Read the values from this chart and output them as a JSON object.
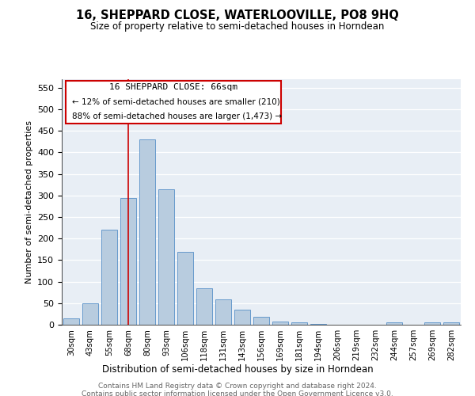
{
  "title": "16, SHEPPARD CLOSE, WATERLOOVILLE, PO8 9HQ",
  "subtitle": "Size of property relative to semi-detached houses in Horndean",
  "xlabel": "Distribution of semi-detached houses by size in Horndean",
  "ylabel": "Number of semi-detached properties",
  "footer_line1": "Contains HM Land Registry data © Crown copyright and database right 2024.",
  "footer_line2": "Contains public sector information licensed under the Open Government Licence v3.0.",
  "annotation_title": "16 SHEPPARD CLOSE: 66sqm",
  "annotation_line1": "← 12% of semi-detached houses are smaller (210)",
  "annotation_line2": "88% of semi-detached houses are larger (1,473) →",
  "bar_color": "#b8ccdf",
  "bar_edgecolor": "#6699cc",
  "vline_color": "#cc0000",
  "annotation_box_edgecolor": "#cc0000",
  "background_color": "#e8eef5",
  "categories": [
    "30sqm",
    "43sqm",
    "55sqm",
    "68sqm",
    "80sqm",
    "93sqm",
    "106sqm",
    "118sqm",
    "131sqm",
    "143sqm",
    "156sqm",
    "169sqm",
    "181sqm",
    "194sqm",
    "206sqm",
    "219sqm",
    "232sqm",
    "244sqm",
    "257sqm",
    "269sqm",
    "282sqm"
  ],
  "values": [
    15,
    50,
    220,
    295,
    430,
    315,
    170,
    85,
    58,
    35,
    18,
    8,
    6,
    1,
    0,
    0,
    0,
    5,
    0,
    5,
    5
  ],
  "vline_index": 3,
  "ylim": [
    0,
    570
  ],
  "yticks": [
    0,
    50,
    100,
    150,
    200,
    250,
    300,
    350,
    400,
    450,
    500,
    550
  ]
}
